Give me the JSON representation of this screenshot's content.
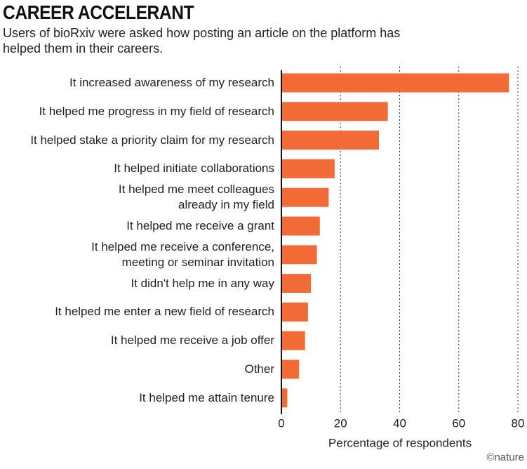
{
  "chart_data": {
    "type": "hbar",
    "title": "CAREER ACCELERANT",
    "subtitle": "Users of bioRxiv were asked how posting an article on the platform has helped them in their careers.",
    "categories": [
      "It increased awareness of my research",
      "It helped me progress in my field of research",
      "It helped stake a priority claim for my research",
      "It helped initiate collaborations",
      "It helped me meet colleagues\nalready in my field",
      "It helped me receive a grant",
      "It helped me receive a conference,\nmeeting or seminar invitation",
      "It didn't help me in any way",
      "It helped me enter a new field of research",
      "It helped me receive a job offer",
      "Other",
      "It helped me attain tenure"
    ],
    "values": [
      77,
      36,
      33,
      18,
      16,
      13,
      12,
      10,
      9,
      8,
      6,
      2
    ],
    "color": "#f26a35",
    "xlim": [
      0,
      80
    ],
    "xticks": [
      0,
      20,
      40,
      60,
      80
    ],
    "grid": true,
    "x_label": "Percentage of respondents",
    "credit": "©nature"
  }
}
